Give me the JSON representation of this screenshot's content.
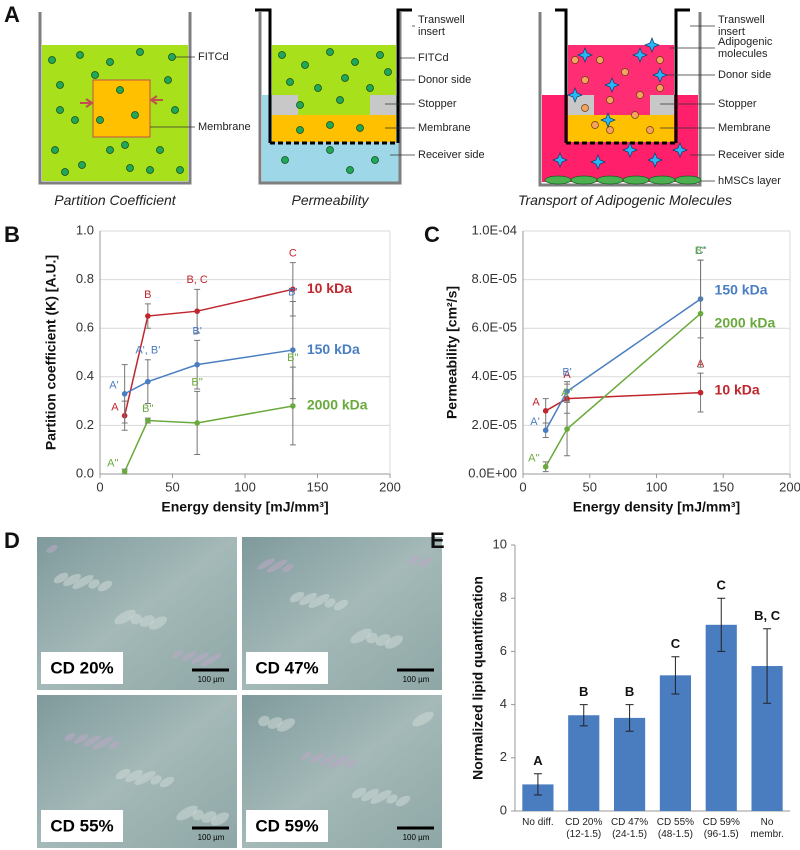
{
  "panel_labels": [
    "A",
    "B",
    "C",
    "D",
    "E"
  ],
  "diagrams": [
    {
      "labels": [
        "FITCd",
        "Membrane"
      ],
      "caption": "Partition Coefficient"
    },
    {
      "labels": [
        "Transwell\ninsert",
        "FITCd",
        "Donor side",
        "Stopper",
        "Membrane",
        "Receiver side"
      ],
      "caption": "Permeability"
    },
    {
      "labels": [
        "Transwell\ninsert",
        "Adipogenic\nmolecules",
        "Donor side",
        "Stopper",
        "Membrane",
        "Receiver side",
        "hMSCs layer"
      ],
      "caption": "Transport of Adipogenic Molecules"
    }
  ],
  "micrographs": [
    {
      "label": "CD 20%",
      "scale": "100 µm"
    },
    {
      "label": "CD 47%",
      "scale": "100 µm"
    },
    {
      "label": "CD 55%",
      "scale": "100 µm"
    },
    {
      "label": "CD 59%",
      "scale": "100 µm"
    }
  ],
  "chart_data": [
    {
      "type": "line",
      "xlabel": "Energy density [mJ/mm³]",
      "ylabel": "Partition coefficient  (K) [A.U.]",
      "x": [
        17,
        33,
        67,
        133
      ],
      "xlim": [
        0,
        200
      ],
      "xticks": [
        0,
        50,
        100,
        150,
        200
      ],
      "ylim": [
        0,
        1
      ],
      "yticks": [
        {
          "value": 0,
          "label": "0.0"
        },
        {
          "value": 0.2,
          "label": "0.2"
        },
        {
          "value": 0.4,
          "label": "0.4"
        },
        {
          "value": 0.6,
          "label": "0.6"
        },
        {
          "value": 0.8,
          "label": "0.8"
        },
        {
          "value": 1,
          "label": "1.0"
        }
      ],
      "grid": true,
      "series": [
        {
          "name": "10 kDa",
          "color": "#c0262d",
          "values": [
            0.24,
            0.65,
            0.67,
            0.76
          ],
          "errors": [
            0.06,
            0.05,
            0.09,
            0.11
          ],
          "letters": [
            "A",
            "B",
            "B, C",
            "C"
          ]
        },
        {
          "name": "150 kDa",
          "color": "#4a7ec2",
          "values": [
            0.33,
            0.38,
            0.45,
            0.51
          ],
          "errors": [
            0.12,
            0.09,
            0.1,
            0.2
          ],
          "letters": [
            "A'",
            "A', B'",
            "B'",
            "B'"
          ]
        },
        {
          "name": "2000 kDa",
          "color": "#6aaa3c",
          "values": [
            0.01,
            0.22,
            0.21,
            0.28
          ],
          "errors": [
            0.01,
            0.01,
            0.13,
            0.16
          ],
          "letters": [
            "A''",
            "B''",
            "B''",
            "B''"
          ]
        }
      ]
    },
    {
      "type": "line",
      "xlabel": "Energy density [mJ/mm³]",
      "ylabel": "Permeability [cm²/s]",
      "x": [
        17,
        33,
        133
      ],
      "xlim": [
        0,
        200
      ],
      "xticks": [
        0,
        50,
        100,
        150,
        200
      ],
      "ylim": [
        0,
        0.0001
      ],
      "yticks": [
        {
          "value": 0,
          "label": "0.0E+00"
        },
        {
          "value": 2e-05,
          "label": "2.0E-05"
        },
        {
          "value": 4e-05,
          "label": "4.0E-05"
        },
        {
          "value": 6e-05,
          "label": "6.0E-05"
        },
        {
          "value": 8e-05,
          "label": "8.0E-05"
        },
        {
          "value": 0.0001,
          "label": "1.0E-04"
        }
      ],
      "grid": true,
      "series": [
        {
          "name": "10 kDa",
          "color": "#c0262d",
          "values": [
            2.6e-05,
            3.1e-05,
            3.35e-05
          ],
          "errors": [
            5e-06,
            6e-06,
            8e-06
          ],
          "letters": [
            "A",
            "A",
            "A"
          ]
        },
        {
          "name": "150 kDa",
          "color": "#4a7ec2",
          "values": [
            1.8e-05,
            3.4e-05,
            7.2e-05
          ],
          "errors": [
            3e-06,
            4e-06,
            1.6e-05
          ],
          "letters": [
            "A'",
            "B'",
            "C'"
          ]
        },
        {
          "name": "2000 kDa",
          "color": "#6aaa3c",
          "values": [
            3e-06,
            1.85e-05,
            6.6e-05
          ],
          "errors": [
            2e-06,
            1.1e-05,
            2.2e-05
          ],
          "letters": [
            "A''",
            "A''",
            "B''"
          ]
        }
      ]
    },
    {
      "type": "bar",
      "ylabel": "Normalized lipid quantification",
      "categories": [
        "No diff.",
        "CD 20%\n(12-1.5)",
        "CD 47%\n(24-1.5)",
        "CD 55%\n(48-1.5)",
        "CD 59%\n(96-1.5)",
        "No\nmembr."
      ],
      "values": [
        1.0,
        3.6,
        3.5,
        5.1,
        7.0,
        5.45
      ],
      "errors": [
        0.4,
        0.4,
        0.5,
        0.7,
        1.0,
        1.4
      ],
      "letters": [
        "A",
        "B",
        "B",
        "C",
        "C",
        "B, C"
      ],
      "color": "#4a7cc0",
      "ylim": [
        0,
        10
      ],
      "yticks": [
        0,
        2,
        4,
        6,
        8,
        10
      ],
      "grid": false
    }
  ]
}
